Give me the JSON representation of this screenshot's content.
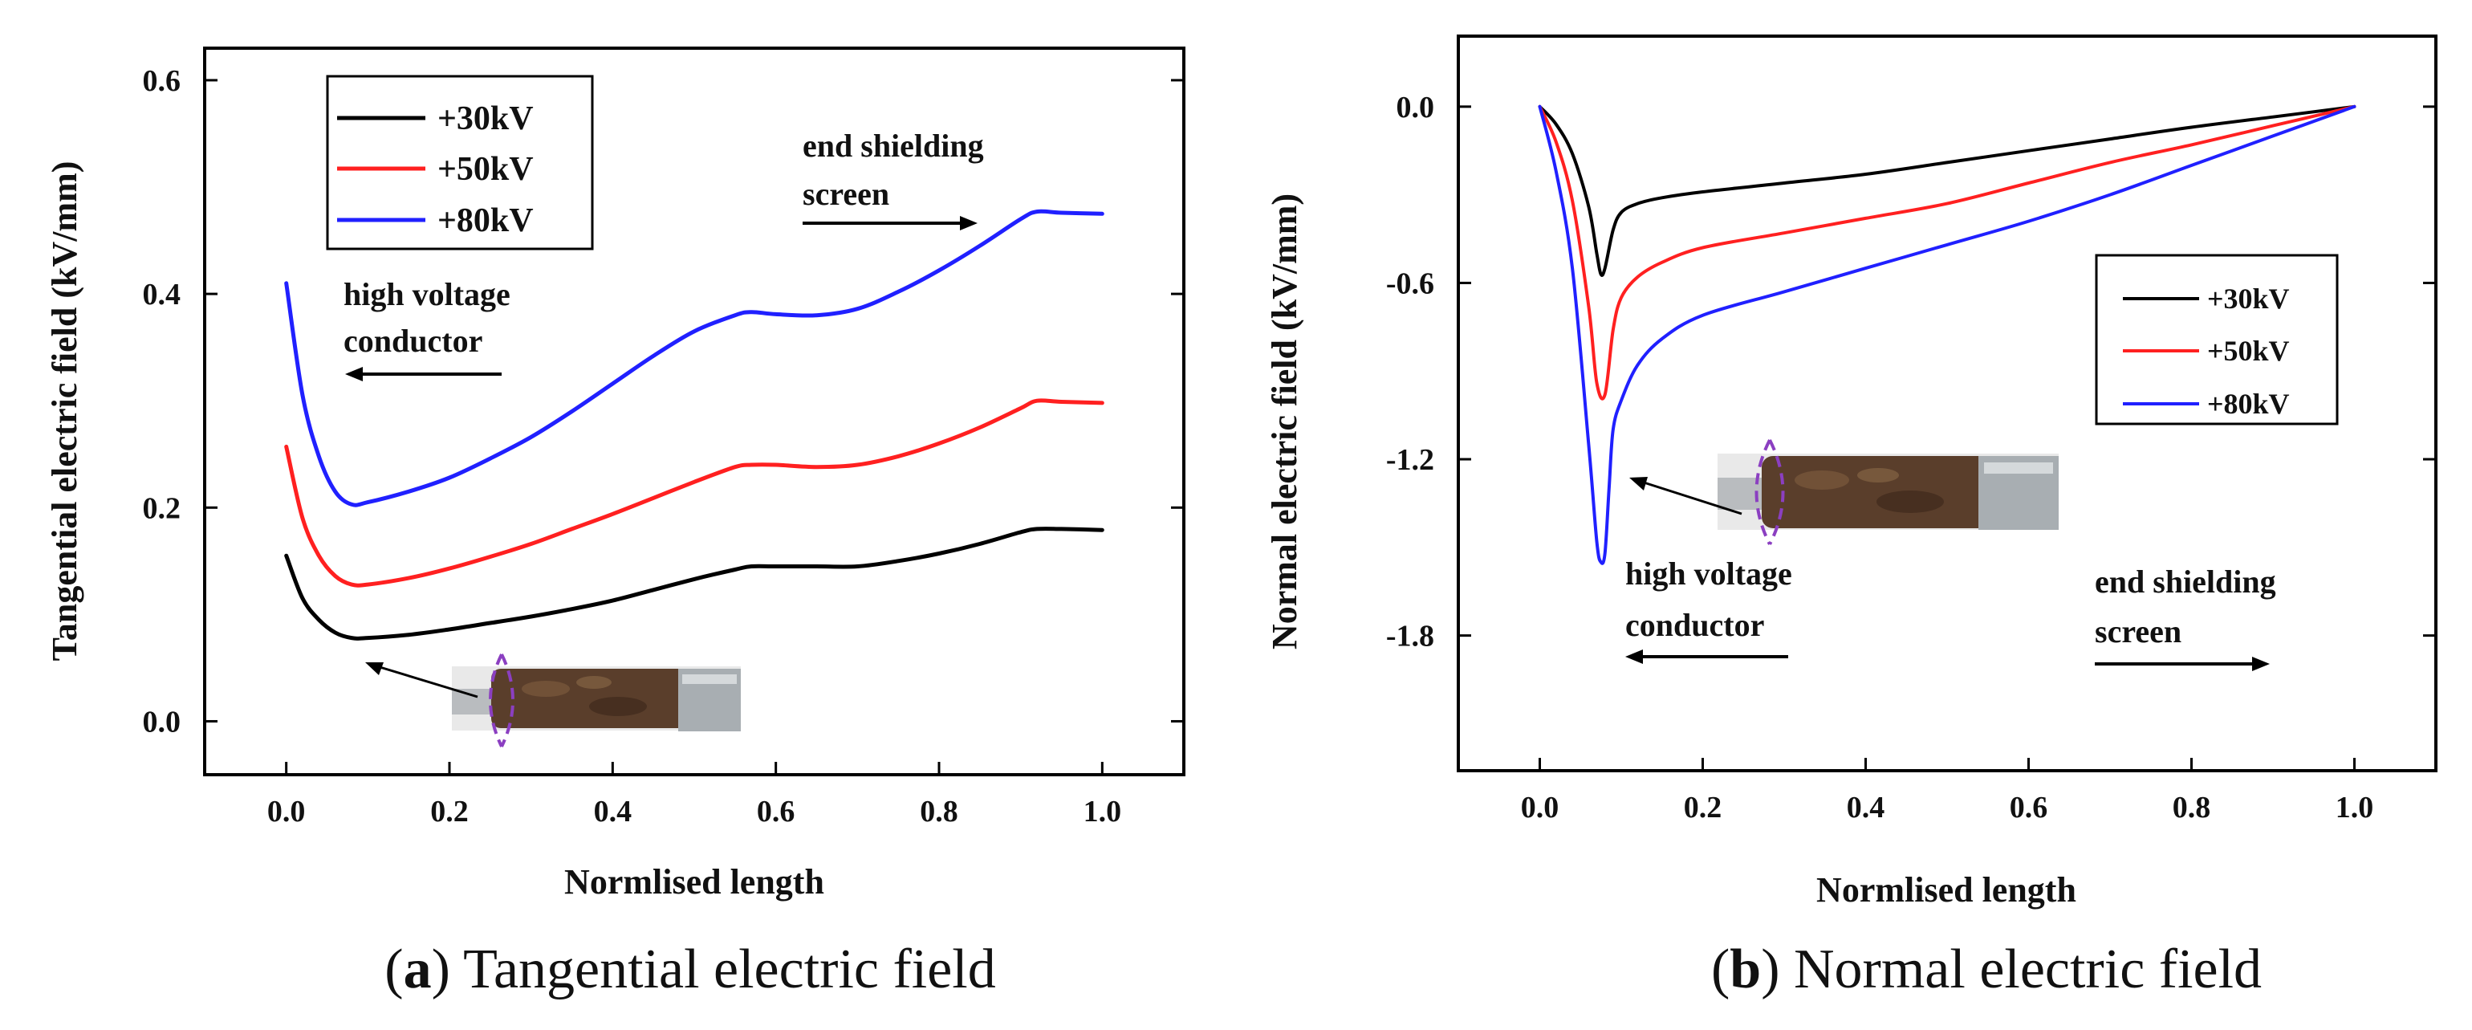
{
  "chart_data": [
    {
      "id": "a",
      "type": "line",
      "xlabel": "Normlised length",
      "ylabel": "Tangential electric field (kV/mm)",
      "xlim": [
        -0.1,
        1.1
      ],
      "ylim": [
        -0.05,
        0.63
      ],
      "xticks": [
        0.0,
        0.2,
        0.4,
        0.6,
        0.8,
        1.0
      ],
      "xtick_labels": [
        "0.0",
        "0.2",
        "0.4",
        "0.6",
        "0.8",
        "1.0"
      ],
      "yticks": [
        0.0,
        0.2,
        0.4,
        0.6
      ],
      "ytick_labels": [
        "0.0",
        "0.2",
        "0.4",
        "0.6"
      ],
      "legend_position": "top-left",
      "caption_letter": "a",
      "caption_text": "Tangential electric field",
      "annotations": [
        {
          "text": [
            "high voltage",
            "conductor"
          ],
          "arrow": "left"
        },
        {
          "text": [
            "end shielding",
            "screen"
          ],
          "arrow": "right"
        }
      ],
      "series": [
        {
          "name": "+30kV",
          "color": "#000000",
          "x": [
            0.0,
            0.02,
            0.04,
            0.06,
            0.08,
            0.1,
            0.15,
            0.2,
            0.25,
            0.3,
            0.35,
            0.4,
            0.45,
            0.5,
            0.55,
            0.57,
            0.6,
            0.65,
            0.7,
            0.75,
            0.8,
            0.85,
            0.9,
            0.92,
            0.95,
            1.0
          ],
          "y": [
            0.155,
            0.115,
            0.095,
            0.083,
            0.078,
            0.078,
            0.081,
            0.086,
            0.092,
            0.098,
            0.105,
            0.113,
            0.123,
            0.133,
            0.142,
            0.145,
            0.145,
            0.145,
            0.145,
            0.15,
            0.157,
            0.166,
            0.177,
            0.18,
            0.18,
            0.179
          ]
        },
        {
          "name": "+50kV",
          "color": "#ff2020",
          "x": [
            0.0,
            0.02,
            0.04,
            0.06,
            0.08,
            0.1,
            0.15,
            0.2,
            0.25,
            0.3,
            0.35,
            0.4,
            0.45,
            0.5,
            0.55,
            0.57,
            0.6,
            0.65,
            0.7,
            0.75,
            0.8,
            0.85,
            0.9,
            0.92,
            0.95,
            1.0
          ],
          "y": [
            0.257,
            0.19,
            0.155,
            0.136,
            0.128,
            0.128,
            0.134,
            0.143,
            0.154,
            0.166,
            0.18,
            0.194,
            0.209,
            0.224,
            0.238,
            0.24,
            0.24,
            0.238,
            0.24,
            0.248,
            0.26,
            0.275,
            0.293,
            0.3,
            0.299,
            0.298
          ]
        },
        {
          "name": "+80kV",
          "color": "#2020ff",
          "x": [
            0.0,
            0.02,
            0.04,
            0.06,
            0.08,
            0.1,
            0.15,
            0.2,
            0.25,
            0.3,
            0.35,
            0.4,
            0.45,
            0.5,
            0.55,
            0.57,
            0.6,
            0.65,
            0.7,
            0.75,
            0.8,
            0.85,
            0.9,
            0.92,
            0.95,
            1.0
          ],
          "y": [
            0.41,
            0.305,
            0.248,
            0.215,
            0.203,
            0.205,
            0.215,
            0.228,
            0.246,
            0.266,
            0.29,
            0.316,
            0.342,
            0.365,
            0.38,
            0.383,
            0.381,
            0.38,
            0.386,
            0.402,
            0.422,
            0.445,
            0.47,
            0.477,
            0.476,
            0.475
          ]
        }
      ]
    },
    {
      "id": "b",
      "type": "line",
      "xlabel": "Normlised length",
      "ylabel": "Normal electric field (kV/mm)",
      "xlim": [
        -0.1,
        1.1
      ],
      "ylim": [
        -2.26,
        0.24
      ],
      "xticks": [
        0.0,
        0.2,
        0.4,
        0.6,
        0.8,
        1.0
      ],
      "xtick_labels": [
        "0.0",
        "0.2",
        "0.4",
        "0.6",
        "0.8",
        "1.0"
      ],
      "yticks": [
        0.0,
        -0.6,
        -1.2,
        -1.8
      ],
      "ytick_labels": [
        "0.0",
        "-0.6",
        "-1.2",
        "-1.8"
      ],
      "legend_position": "middle-right",
      "caption_letter": "b",
      "caption_text": "Normal electric field",
      "annotations": [
        {
          "text": [
            "high voltage",
            "conductor"
          ],
          "arrow": "left"
        },
        {
          "text": [
            "end shielding",
            "screen"
          ],
          "arrow": "right"
        }
      ],
      "series": [
        {
          "name": "+30kV",
          "color": "#000000",
          "x": [
            0.0,
            0.02,
            0.04,
            0.06,
            0.07,
            0.075,
            0.08,
            0.09,
            0.1,
            0.12,
            0.15,
            0.2,
            0.3,
            0.4,
            0.5,
            0.6,
            0.7,
            0.8,
            0.9,
            1.0
          ],
          "y": [
            0.0,
            -0.06,
            -0.16,
            -0.34,
            -0.5,
            -0.57,
            -0.55,
            -0.42,
            -0.36,
            -0.33,
            -0.31,
            -0.29,
            -0.26,
            -0.23,
            -0.19,
            -0.15,
            -0.11,
            -0.07,
            -0.035,
            0.0
          ]
        },
        {
          "name": "+50kV",
          "color": "#ff2020",
          "x": [
            0.0,
            0.02,
            0.04,
            0.06,
            0.07,
            0.08,
            0.09,
            0.1,
            0.12,
            0.15,
            0.2,
            0.3,
            0.4,
            0.5,
            0.6,
            0.7,
            0.8,
            0.9,
            1.0
          ],
          "y": [
            0.0,
            -0.12,
            -0.32,
            -0.68,
            -0.94,
            -0.98,
            -0.76,
            -0.65,
            -0.58,
            -0.53,
            -0.48,
            -0.43,
            -0.38,
            -0.33,
            -0.26,
            -0.19,
            -0.13,
            -0.065,
            0.0
          ]
        },
        {
          "name": "+80kV",
          "color": "#2020ff",
          "x": [
            0.0,
            0.02,
            0.04,
            0.06,
            0.07,
            0.075,
            0.08,
            0.085,
            0.09,
            0.1,
            0.12,
            0.15,
            0.2,
            0.3,
            0.4,
            0.5,
            0.6,
            0.7,
            0.8,
            0.9,
            1.0
          ],
          "y": [
            0.0,
            -0.22,
            -0.55,
            -1.15,
            -1.48,
            -1.55,
            -1.52,
            -1.3,
            -1.1,
            -1.0,
            -0.88,
            -0.79,
            -0.71,
            -0.63,
            -0.55,
            -0.47,
            -0.39,
            -0.3,
            -0.2,
            -0.1,
            0.0
          ]
        }
      ]
    }
  ]
}
